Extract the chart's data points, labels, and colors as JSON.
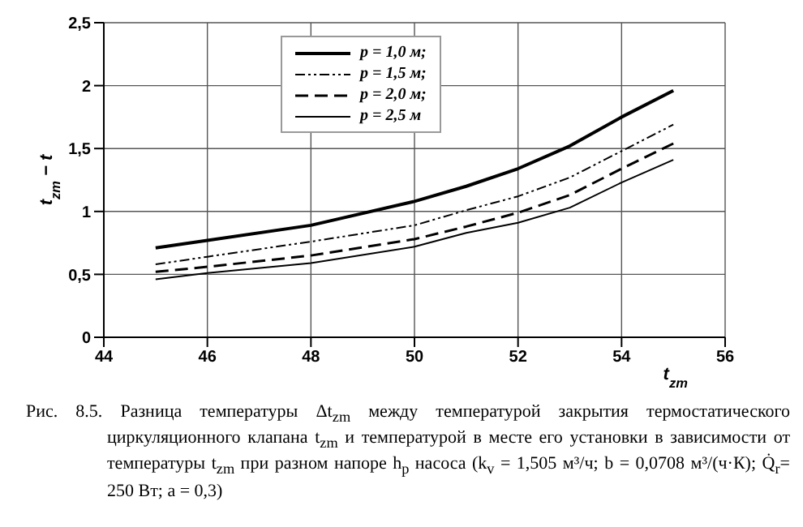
{
  "chart_data": {
    "type": "line",
    "xlabel": "t$_{zm}$",
    "ylabel": "t$_{zm}$ − t",
    "x": [
      45,
      46,
      48,
      50,
      51,
      52,
      53,
      54,
      55
    ],
    "series": [
      {
        "name": "p = 1,0 м;",
        "color": "#000000",
        "line_style": "solid",
        "values": [
          0.71,
          0.77,
          0.89,
          1.08,
          1.2,
          1.34,
          1.52,
          1.75,
          1.96
        ]
      },
      {
        "name": "p = 1,5 м;",
        "color": "#000000",
        "line_style": "dashdotdot",
        "values": [
          0.58,
          0.64,
          0.76,
          0.89,
          1.01,
          1.12,
          1.27,
          1.48,
          1.69
        ]
      },
      {
        "name": "p = 2,0 м;",
        "color": "#000000",
        "line_style": "dashed",
        "values": [
          0.52,
          0.56,
          0.65,
          0.78,
          0.88,
          0.99,
          1.13,
          1.34,
          1.54
        ]
      },
      {
        "name": "p = 2,5 м",
        "color": "#000000",
        "line_style": "solid",
        "values": [
          0.46,
          0.51,
          0.59,
          0.72,
          0.83,
          0.91,
          1.03,
          1.23,
          1.41
        ]
      }
    ],
    "xlim": [
      44,
      56
    ],
    "xticks": [
      44,
      46,
      48,
      50,
      52,
      54,
      56
    ],
    "ylim": [
      0,
      2.5
    ],
    "yticks": [
      0,
      {
        "value": 0.5,
        "label": "0,5"
      },
      1,
      {
        "value": 1.5,
        "label": "1,5"
      },
      2,
      {
        "value": 2.5,
        "label": "2,5"
      }
    ],
    "grid": true,
    "legend": "top left",
    "marker": "none",
    "annotations": [
      "Рис. 8.5. Разница температуры Δt$_{zm}$ между температурой закрытия термостатического циркуляционного клапана t$_{zm}$ и температурой в месте его установки в зависимости от температуры t$_{zm}$ при разном напоре h$_{p}$ насоса (k$_{v}$ = 1,505 м³/ч; b = 0,0708 м³/(ч·К); Q̇$_{r}$= 250 Вт; a = 0,3)"
    ]
  }
}
